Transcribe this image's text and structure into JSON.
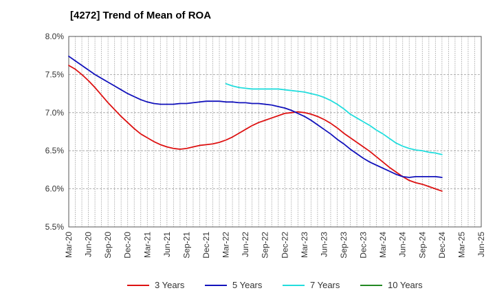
{
  "chart_data": {
    "type": "line",
    "title": "[4272]  Trend of Mean of ROA",
    "xlabel": "",
    "ylabel": "",
    "ylim": [
      5.5,
      8.0
    ],
    "yticks": [
      "5.5%",
      "6.0%",
      "6.5%",
      "7.0%",
      "7.5%",
      "8.0%"
    ],
    "ytick_values": [
      5.5,
      6.0,
      6.5,
      7.0,
      7.5,
      8.0
    ],
    "x_ticks": [
      "Mar-20",
      "Jun-20",
      "Sep-20",
      "Dec-20",
      "Mar-21",
      "Jun-21",
      "Sep-21",
      "Dec-21",
      "Mar-22",
      "Jun-22",
      "Sep-22",
      "Dec-22",
      "Mar-23",
      "Jun-23",
      "Sep-23",
      "Dec-23",
      "Mar-24",
      "Jun-24",
      "Sep-24",
      "Dec-24",
      "Mar-25",
      "Jun-25"
    ],
    "x_months": 63,
    "grid": true,
    "legend_position": "bottom",
    "series": [
      {
        "name": "3 Years",
        "color": "#dd1111",
        "points": [
          [
            0,
            7.62
          ],
          [
            1,
            7.57
          ],
          [
            2,
            7.5
          ],
          [
            3,
            7.42
          ],
          [
            4,
            7.33
          ],
          [
            5,
            7.23
          ],
          [
            6,
            7.13
          ],
          [
            7,
            7.04
          ],
          [
            8,
            6.95
          ],
          [
            9,
            6.87
          ],
          [
            10,
            6.79
          ],
          [
            11,
            6.72
          ],
          [
            12,
            6.67
          ],
          [
            13,
            6.62
          ],
          [
            14,
            6.58
          ],
          [
            15,
            6.55
          ],
          [
            16,
            6.53
          ],
          [
            17,
            6.52
          ],
          [
            18,
            6.53
          ],
          [
            19,
            6.55
          ],
          [
            20,
            6.57
          ],
          [
            21,
            6.58
          ],
          [
            22,
            6.59
          ],
          [
            23,
            6.61
          ],
          [
            24,
            6.64
          ],
          [
            25,
            6.68
          ],
          [
            26,
            6.73
          ],
          [
            27,
            6.78
          ],
          [
            28,
            6.83
          ],
          [
            29,
            6.87
          ],
          [
            30,
            6.9
          ],
          [
            31,
            6.93
          ],
          [
            32,
            6.96
          ],
          [
            33,
            6.99
          ],
          [
            34,
            7.0
          ],
          [
            35,
            7.01
          ],
          [
            36,
            7.0
          ],
          [
            37,
            6.98
          ],
          [
            38,
            6.95
          ],
          [
            39,
            6.91
          ],
          [
            40,
            6.86
          ],
          [
            41,
            6.8
          ],
          [
            42,
            6.73
          ],
          [
            43,
            6.67
          ],
          [
            44,
            6.61
          ],
          [
            45,
            6.55
          ],
          [
            46,
            6.49
          ],
          [
            47,
            6.42
          ],
          [
            48,
            6.35
          ],
          [
            49,
            6.28
          ],
          [
            50,
            6.22
          ],
          [
            51,
            6.16
          ],
          [
            52,
            6.11
          ],
          [
            53,
            6.08
          ],
          [
            54,
            6.06
          ],
          [
            55,
            6.03
          ],
          [
            56,
            6.0
          ],
          [
            57,
            5.97
          ]
        ]
      },
      {
        "name": "5 Years",
        "color": "#1111bb",
        "points": [
          [
            0,
            7.74
          ],
          [
            1,
            7.68
          ],
          [
            2,
            7.62
          ],
          [
            3,
            7.56
          ],
          [
            4,
            7.5
          ],
          [
            5,
            7.45
          ],
          [
            6,
            7.4
          ],
          [
            7,
            7.35
          ],
          [
            8,
            7.3
          ],
          [
            9,
            7.25
          ],
          [
            10,
            7.21
          ],
          [
            11,
            7.17
          ],
          [
            12,
            7.14
          ],
          [
            13,
            7.12
          ],
          [
            14,
            7.11
          ],
          [
            15,
            7.11
          ],
          [
            16,
            7.11
          ],
          [
            17,
            7.12
          ],
          [
            18,
            7.12
          ],
          [
            19,
            7.13
          ],
          [
            20,
            7.14
          ],
          [
            21,
            7.15
          ],
          [
            22,
            7.15
          ],
          [
            23,
            7.15
          ],
          [
            24,
            7.14
          ],
          [
            25,
            7.14
          ],
          [
            26,
            7.13
          ],
          [
            27,
            7.13
          ],
          [
            28,
            7.12
          ],
          [
            29,
            7.12
          ],
          [
            30,
            7.11
          ],
          [
            31,
            7.1
          ],
          [
            32,
            7.08
          ],
          [
            33,
            7.06
          ],
          [
            34,
            7.03
          ],
          [
            35,
            6.99
          ],
          [
            36,
            6.95
          ],
          [
            37,
            6.9
          ],
          [
            38,
            6.84
          ],
          [
            39,
            6.78
          ],
          [
            40,
            6.72
          ],
          [
            41,
            6.65
          ],
          [
            42,
            6.59
          ],
          [
            43,
            6.52
          ],
          [
            44,
            6.46
          ],
          [
            45,
            6.4
          ],
          [
            46,
            6.35
          ],
          [
            47,
            6.31
          ],
          [
            48,
            6.27
          ],
          [
            49,
            6.23
          ],
          [
            50,
            6.19
          ],
          [
            51,
            6.16
          ],
          [
            52,
            6.15
          ],
          [
            53,
            6.16
          ],
          [
            54,
            6.16
          ],
          [
            55,
            6.16
          ],
          [
            56,
            6.16
          ],
          [
            57,
            6.15
          ]
        ]
      },
      {
        "name": "7 Years",
        "color": "#22dddd",
        "points": [
          [
            24,
            7.38
          ],
          [
            25,
            7.35
          ],
          [
            26,
            7.33
          ],
          [
            27,
            7.32
          ],
          [
            28,
            7.31
          ],
          [
            29,
            7.31
          ],
          [
            30,
            7.31
          ],
          [
            31,
            7.31
          ],
          [
            32,
            7.31
          ],
          [
            33,
            7.3
          ],
          [
            34,
            7.29
          ],
          [
            35,
            7.28
          ],
          [
            36,
            7.27
          ],
          [
            37,
            7.25
          ],
          [
            38,
            7.23
          ],
          [
            39,
            7.2
          ],
          [
            40,
            7.16
          ],
          [
            41,
            7.11
          ],
          [
            42,
            7.05
          ],
          [
            43,
            6.98
          ],
          [
            44,
            6.93
          ],
          [
            45,
            6.88
          ],
          [
            46,
            6.83
          ],
          [
            47,
            6.77
          ],
          [
            48,
            6.72
          ],
          [
            49,
            6.66
          ],
          [
            50,
            6.6
          ],
          [
            51,
            6.56
          ],
          [
            52,
            6.53
          ],
          [
            53,
            6.51
          ],
          [
            54,
            6.5
          ],
          [
            55,
            6.48
          ],
          [
            56,
            6.47
          ],
          [
            57,
            6.45
          ]
        ]
      },
      {
        "name": "10 Years",
        "color": "#228822",
        "points": []
      }
    ]
  }
}
